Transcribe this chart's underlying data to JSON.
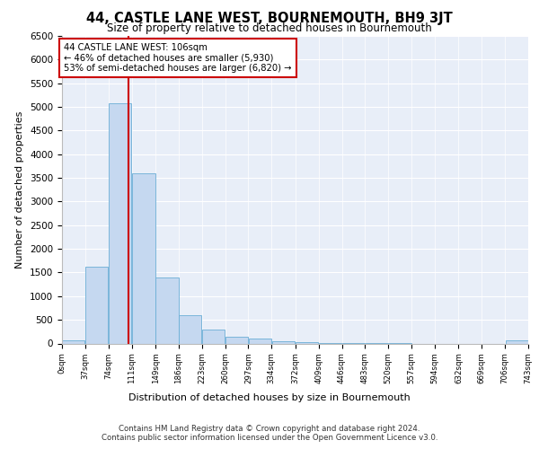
{
  "title": "44, CASTLE LANE WEST, BOURNEMOUTH, BH9 3JT",
  "subtitle": "Size of property relative to detached houses in Bournemouth",
  "xlabel": "Distribution of detached houses by size in Bournemouth",
  "ylabel": "Number of detached properties",
  "property_size": 106,
  "bar_edges": [
    0,
    37,
    74,
    111,
    149,
    186,
    223,
    260,
    297,
    334,
    372,
    409,
    446,
    483,
    520,
    557,
    594,
    632,
    669,
    706,
    743
  ],
  "bar_labels": [
    "0sqm",
    "37sqm",
    "74sqm",
    "111sqm",
    "149sqm",
    "186sqm",
    "223sqm",
    "260sqm",
    "297sqm",
    "334sqm",
    "372sqm",
    "409sqm",
    "446sqm",
    "483sqm",
    "520sqm",
    "557sqm",
    "594sqm",
    "632sqm",
    "669sqm",
    "706sqm",
    "743sqm"
  ],
  "bar_heights": [
    60,
    1620,
    5080,
    3600,
    1400,
    590,
    290,
    150,
    100,
    50,
    30,
    10,
    5,
    2,
    1,
    0,
    0,
    0,
    0,
    60
  ],
  "bar_color": "#c5d8f0",
  "bar_edge_color": "#6baed6",
  "vline_color": "#cc0000",
  "annotation_text": "44 CASTLE LANE WEST: 106sqm\n← 46% of detached houses are smaller (5,930)\n53% of semi-detached houses are larger (6,820) →",
  "annotation_box_facecolor": "white",
  "annotation_box_edgecolor": "#cc0000",
  "ylim": [
    0,
    6500
  ],
  "yticks": [
    0,
    500,
    1000,
    1500,
    2000,
    2500,
    3000,
    3500,
    4000,
    4500,
    5000,
    5500,
    6000,
    6500
  ],
  "background_color": "#e8eef8",
  "footer_line1": "Contains HM Land Registry data © Crown copyright and database right 2024.",
  "footer_line2": "Contains public sector information licensed under the Open Government Licence v3.0."
}
